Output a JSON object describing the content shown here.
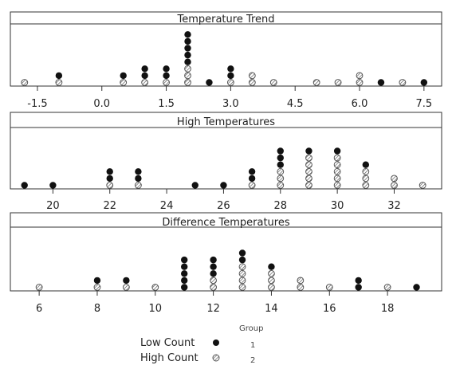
{
  "chart_data": [
    {
      "type": "dot_plot",
      "title": "Temperature Trend",
      "xlim": [
        -2.0,
        7.8
      ],
      "ticks": [
        -1.5,
        0.0,
        1.5,
        3.0,
        4.5,
        6.0,
        7.5
      ],
      "tick_labels": [
        "-1.5",
        "0.0",
        "1.5",
        "3.0",
        "4.5",
        "6.0",
        "7.5"
      ],
      "series": [
        {
          "name": "Low Count",
          "group": "1",
          "points": [
            {
              "x": -1.0,
              "count": 1
            },
            {
              "x": 0.5,
              "count": 1
            },
            {
              "x": 1.0,
              "count": 2
            },
            {
              "x": 1.5,
              "count": 2
            },
            {
              "x": 2.0,
              "count": 5
            },
            {
              "x": 2.5,
              "count": 1
            },
            {
              "x": 3.0,
              "count": 2
            },
            {
              "x": 6.5,
              "count": 1
            },
            {
              "x": 7.5,
              "count": 1
            }
          ]
        },
        {
          "name": "High Count",
          "group": "2",
          "points": [
            {
              "x": -1.8,
              "count": 1
            },
            {
              "x": -1.0,
              "count": 1
            },
            {
              "x": 0.5,
              "count": 1
            },
            {
              "x": 1.0,
              "count": 1
            },
            {
              "x": 1.5,
              "count": 1
            },
            {
              "x": 2.0,
              "count": 3
            },
            {
              "x": 3.0,
              "count": 1
            },
            {
              "x": 3.5,
              "count": 2
            },
            {
              "x": 4.0,
              "count": 1
            },
            {
              "x": 5.0,
              "count": 1
            },
            {
              "x": 5.5,
              "count": 1
            },
            {
              "x": 6.0,
              "count": 2
            },
            {
              "x": 7.0,
              "count": 1
            }
          ]
        }
      ]
    },
    {
      "type": "dot_plot",
      "title": "High Temperatures",
      "xlim": [
        18.7,
        33.5
      ],
      "ticks": [
        20,
        22,
        24,
        26,
        28,
        30,
        32
      ],
      "tick_labels": [
        "20",
        "22",
        "24",
        "26",
        "28",
        "30",
        "32"
      ],
      "series": [
        {
          "name": "Low Count",
          "group": "1",
          "points": [
            {
              "x": 19,
              "count": 1
            },
            {
              "x": 20,
              "count": 1
            },
            {
              "x": 22,
              "count": 2
            },
            {
              "x": 23,
              "count": 2
            },
            {
              "x": 25,
              "count": 1
            },
            {
              "x": 26,
              "count": 1
            },
            {
              "x": 27,
              "count": 2
            },
            {
              "x": 28,
              "count": 3
            },
            {
              "x": 29,
              "count": 1
            },
            {
              "x": 30,
              "count": 1
            },
            {
              "x": 31,
              "count": 1
            }
          ]
        },
        {
          "name": "High Count",
          "group": "2",
          "points": [
            {
              "x": 22,
              "count": 1
            },
            {
              "x": 23,
              "count": 1
            },
            {
              "x": 27,
              "count": 1
            },
            {
              "x": 28,
              "count": 3
            },
            {
              "x": 29,
              "count": 5
            },
            {
              "x": 30,
              "count": 5
            },
            {
              "x": 31,
              "count": 3
            },
            {
              "x": 32,
              "count": 2
            },
            {
              "x": 33,
              "count": 1
            }
          ]
        }
      ]
    },
    {
      "type": "dot_plot",
      "title": "Difference Temperatures",
      "xlim": [
        5.2,
        19.7
      ],
      "ticks": [
        6,
        8,
        10,
        12,
        14,
        16,
        18
      ],
      "tick_labels": [
        "6",
        "8",
        "10",
        "12",
        "14",
        "16",
        "18"
      ],
      "series": [
        {
          "name": "Low Count",
          "group": "1",
          "points": [
            {
              "x": 8,
              "count": 1
            },
            {
              "x": 9,
              "count": 1
            },
            {
              "x": 11,
              "count": 5
            },
            {
              "x": 12,
              "count": 3
            },
            {
              "x": 13,
              "count": 2
            },
            {
              "x": 14,
              "count": 1
            },
            {
              "x": 17,
              "count": 2
            },
            {
              "x": 19,
              "count": 1
            }
          ]
        },
        {
          "name": "High Count",
          "group": "2",
          "points": [
            {
              "x": 6,
              "count": 1
            },
            {
              "x": 8,
              "count": 1
            },
            {
              "x": 9,
              "count": 1
            },
            {
              "x": 10,
              "count": 1
            },
            {
              "x": 12,
              "count": 2
            },
            {
              "x": 13,
              "count": 4
            },
            {
              "x": 14,
              "count": 3
            },
            {
              "x": 15,
              "count": 2
            },
            {
              "x": 16,
              "count": 1
            },
            {
              "x": 18,
              "count": 1
            }
          ]
        }
      ]
    }
  ],
  "legend": {
    "header": "Group",
    "items": [
      {
        "label": "Low Count",
        "group": "1",
        "marker": "filled-dot"
      },
      {
        "label": "High Count",
        "group": "2",
        "marker": "hatched-dot"
      }
    ]
  },
  "colors": {
    "filled": "#111111",
    "hatched_stroke": "#555555",
    "frame": "#333333"
  }
}
